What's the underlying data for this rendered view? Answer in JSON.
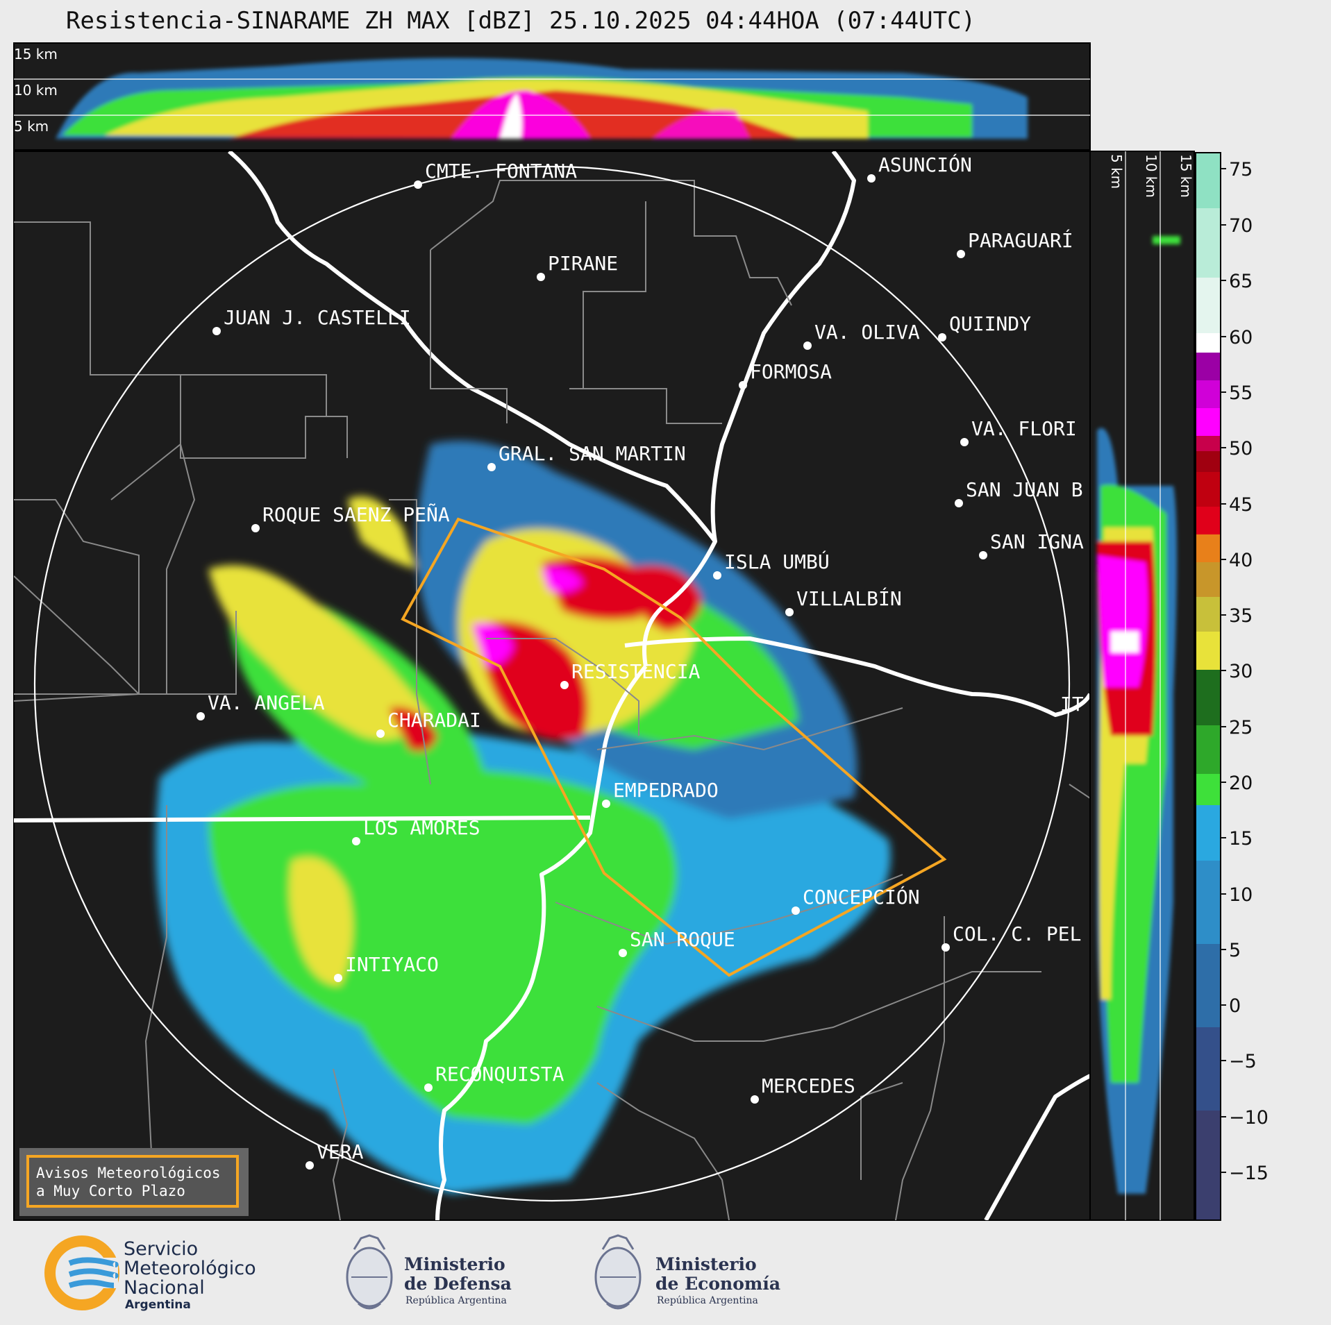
{
  "header": {
    "title": "Resistencia-SINARAME ZH MAX [dBZ] 25.10.2025 04:44HOA (07:44UTC)"
  },
  "height_panel_top": {
    "labels": [
      "15 km",
      "10 km",
      "5 km"
    ]
  },
  "height_panel_right": {
    "labels": [
      "5 km",
      "10 km",
      "15 km"
    ]
  },
  "colorbar": {
    "ticks": [
      "75",
      "70",
      "65",
      "60",
      "55",
      "50",
      "45",
      "40",
      "35",
      "30",
      "25",
      "20",
      "15",
      "10",
      "5",
      "0",
      "−5",
      "−10",
      "−15"
    ],
    "colors": {
      "light_teal": "#8fe1c3",
      "white": "#ffffff",
      "purple": "#9b00a5",
      "magenta": "#ff00ff",
      "crimson": "#c8004b",
      "red": "#e0001a",
      "orange": "#e8801a",
      "yellow": "#e8e23a",
      "dark_green": "#1e6e1e",
      "green": "#3ee03a",
      "light_blue": "#2aa8e0",
      "blue": "#2e7ab8",
      "navy": "#3b3f6e"
    }
  },
  "map": {
    "cities": [
      "CMTE. FONTANA",
      "PIRANE",
      "JUAN J. CASTELLI",
      "ASUNCIÓN",
      "PARAGUARÍ",
      "QUIINDY",
      "VA. OLIVA",
      "FORMOSA",
      "VA. FLORI",
      "GRAL. SAN MARTIN",
      "SAN JUAN B",
      "SAN IGNA",
      "ROQUE SAENZ PEÑA",
      "ISLA UMBÚ",
      "VILLALBÍN",
      "RESISTENCIA",
      "VA. ANGELA",
      "CHARADAI",
      "IT",
      "EMPEDRADO",
      "LOS AMORES",
      "CONCEPCIÓN",
      "SAN ROQUE",
      "COL. C. PEL",
      "INTIYACO",
      "RECONQUISTA",
      "MERCEDES",
      "VERA"
    ],
    "colors": {
      "background": "#1c1c1c",
      "warning_polygon": "#f5a623",
      "rivers": "#ffffff",
      "boundaries": "#8a8a8a"
    }
  },
  "legend_box": {
    "line1": "Avisos Meteorológicos",
    "line2": "a Muy Corto Plazo"
  },
  "footer": {
    "smn": {
      "line1": "Servicio",
      "line2": "Meteorológico",
      "line3": "Nacional",
      "line4": "Argentina"
    },
    "defensa": {
      "line1": "Ministerio",
      "line2": "de Defensa",
      "line3": "República Argentina"
    },
    "economia": {
      "line1": "Ministerio",
      "line2": "de Economía",
      "line3": "República Argentina"
    }
  }
}
